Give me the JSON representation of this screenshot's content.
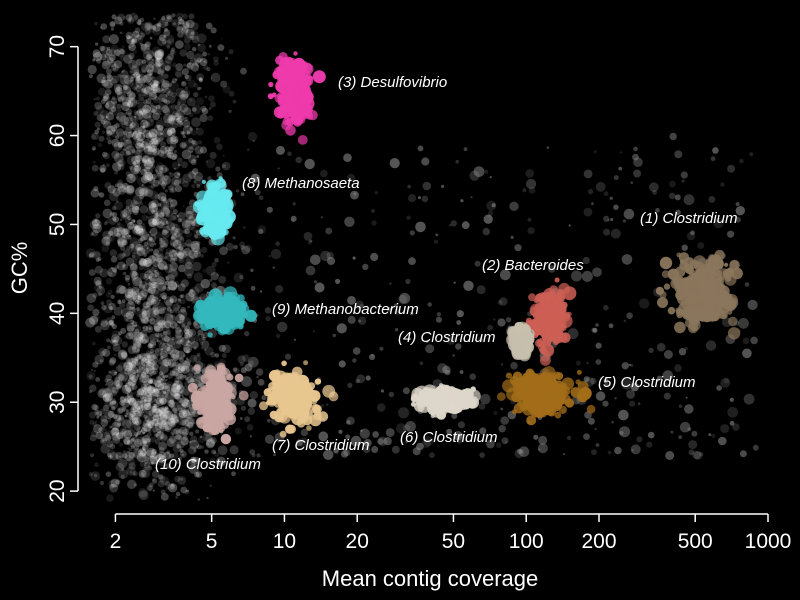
{
  "chart_data": {
    "type": "scatter",
    "title": "",
    "xlabel": "Mean contig coverage",
    "ylabel": "GC%",
    "x_scale": "log",
    "xlim": [
      1.6,
      1000
    ],
    "ylim": [
      19,
      73
    ],
    "x_ticks": [
      2,
      5,
      10,
      20,
      50,
      100,
      200,
      500,
      1000
    ],
    "y_ticks": [
      20,
      30,
      40,
      50,
      60,
      70
    ],
    "background": "#000000",
    "grid": false,
    "legend": "none",
    "background_cloud": {
      "color": "#ffffff",
      "description_points": [
        {
          "x": 2.7,
          "y": 65,
          "spread_x": 0.35,
          "spread_y": 7
        },
        {
          "x": 2.9,
          "y": 45,
          "spread_x": 0.35,
          "spread_y": 8
        },
        {
          "x": 2.9,
          "y": 29,
          "spread_x": 0.3,
          "spread_y": 5
        }
      ]
    },
    "clusters": [
      {
        "id": 1,
        "label": "(1) Clostridium",
        "color": "#8a765c",
        "x": 550,
        "y": 42.5,
        "spread_x": 0.12,
        "spread_y": 3.5
      },
      {
        "id": 2,
        "label": "(2) Bacteroides",
        "color": "#cc5f55",
        "x": 125,
        "y": 39.5,
        "spread_x": 0.06,
        "spread_y": 3
      },
      {
        "id": 3,
        "label": "(3) Desulfovibrio",
        "color": "#ee3aab",
        "x": 11,
        "y": 65,
        "spread_x": 0.07,
        "spread_y": 3.2
      },
      {
        "id": 4,
        "label": "(4) Clostridium",
        "color": "#c7bfad",
        "x": 95,
        "y": 37,
        "spread_x": 0.03,
        "spread_y": 1.5
      },
      {
        "id": 5,
        "label": "(5) Clostridium",
        "color": "#a26d19",
        "x": 115,
        "y": 31,
        "spread_x": 0.11,
        "spread_y": 2.2
      },
      {
        "id": 6,
        "label": "(6) Clostridium",
        "color": "#ddd6ca",
        "x": 45,
        "y": 30.3,
        "spread_x": 0.09,
        "spread_y": 1.2
      },
      {
        "id": 7,
        "label": "(7) Clostridium",
        "color": "#e8c68f",
        "x": 11,
        "y": 30.5,
        "spread_x": 0.1,
        "spread_y": 2.5
      },
      {
        "id": 8,
        "label": "(8) Methanosaeta",
        "color": "#66eaf0",
        "x": 5.2,
        "y": 51.5,
        "spread_x": 0.05,
        "spread_y": 2.7
      },
      {
        "id": 9,
        "label": "(9) Methanobacterium",
        "color": "#33b8bd",
        "x": 5.6,
        "y": 40,
        "spread_x": 0.08,
        "spread_y": 1.5
      },
      {
        "id": 10,
        "label": "(10) Clostridium",
        "color": "#c9a6a2",
        "x": 5.2,
        "y": 30,
        "spread_x": 0.06,
        "spread_y": 3.2
      }
    ]
  }
}
